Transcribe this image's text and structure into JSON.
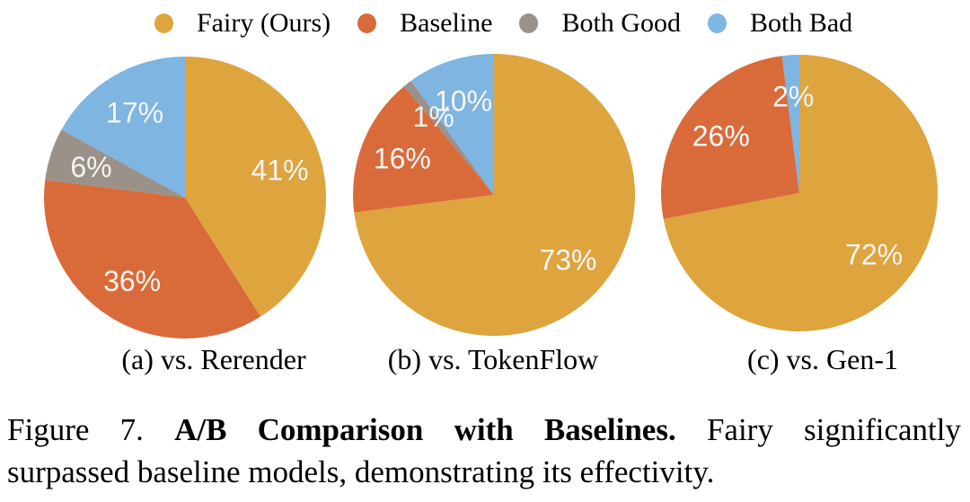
{
  "colors": {
    "fairy": "#DEA43E",
    "baseline": "#D96B3B",
    "both_good": "#9A9189",
    "both_bad": "#7EB5E1",
    "pct_text": "#F5F5F2",
    "text": "#000000",
    "background": "#FFFFFF"
  },
  "legend": {
    "position": "top",
    "items": [
      {
        "label": "Fairy (Ours)",
        "color_key": "fairy"
      },
      {
        "label": "Baseline",
        "color_key": "baseline"
      },
      {
        "label": "Both Good",
        "color_key": "both_good"
      },
      {
        "label": "Both Bad",
        "color_key": "both_bad"
      }
    ]
  },
  "chart_data": [
    {
      "type": "pie",
      "title": "(a) vs. Rerender",
      "start_angle": "12 o'clock",
      "direction": "clockwise",
      "slices": [
        {
          "label": "Fairy (Ours)",
          "value": 41,
          "pct_label": "41%",
          "color_key": "fairy"
        },
        {
          "label": "Baseline",
          "value": 36,
          "pct_label": "36%",
          "color_key": "baseline"
        },
        {
          "label": "Both Good",
          "value": 6,
          "pct_label": "6%",
          "color_key": "both_good"
        },
        {
          "label": "Both Bad",
          "value": 17,
          "pct_label": "17%",
          "color_key": "both_bad"
        }
      ]
    },
    {
      "type": "pie",
      "title": "(b) vs. TokenFlow",
      "start_angle": "12 o'clock",
      "direction": "clockwise",
      "slices": [
        {
          "label": "Fairy (Ours)",
          "value": 73,
          "pct_label": "73%",
          "color_key": "fairy"
        },
        {
          "label": "Baseline",
          "value": 16,
          "pct_label": "16%",
          "color_key": "baseline"
        },
        {
          "label": "Both Good",
          "value": 1,
          "pct_label": "1%",
          "color_key": "both_good"
        },
        {
          "label": "Both Bad",
          "value": 10,
          "pct_label": "10%",
          "color_key": "both_bad"
        }
      ]
    },
    {
      "type": "pie",
      "title": "(c) vs. Gen-1",
      "start_angle": "12 o'clock",
      "direction": "clockwise",
      "slices": [
        {
          "label": "Fairy (Ours)",
          "value": 72,
          "pct_label": "72%",
          "color_key": "fairy"
        },
        {
          "label": "Baseline",
          "value": 26,
          "pct_label": "26%",
          "color_key": "baseline"
        },
        {
          "label": "Both Good",
          "value": 0,
          "pct_label": "",
          "color_key": "both_good"
        },
        {
          "label": "Both Bad",
          "value": 2,
          "pct_label": "2%",
          "color_key": "both_bad"
        }
      ]
    }
  ],
  "caption": {
    "figure_label": "Figure 7.",
    "bold_title": "A/B Comparison with Baselines.",
    "line1_rest": "Fairy significantly",
    "line2": "surpassed baseline models, demonstrating its effectivity."
  }
}
